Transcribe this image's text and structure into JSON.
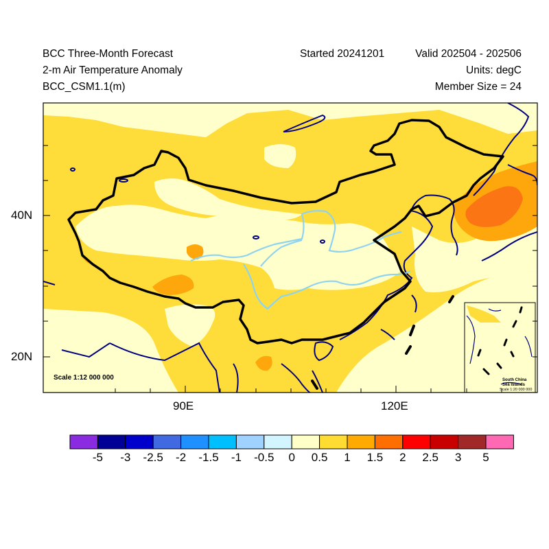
{
  "header": {
    "title": "BCC Three-Month Forecast",
    "variable": "2-m Air Temperature Anomaly",
    "model": "BCC_CSM1.1(m)",
    "started": "Started 20241201",
    "valid": "Valid 202504 - 202506",
    "units": "Units: degC",
    "members": "Member Size = 24"
  },
  "map": {
    "scale_label": "Scale 1:12 000 000",
    "inset": {
      "title_line1": "South China",
      "title_line2": "Sea Islands",
      "scale": "Scale 1:20 000 000"
    },
    "lat_labels": [
      "40N",
      "20N"
    ],
    "lon_labels": [
      "90E",
      "120E"
    ],
    "colors": {
      "ocean_bg": "#ffffcc",
      "anom_0_05": "#ffffcc",
      "anom_05_1": "#fedd3a",
      "anom_1_15": "#fda70c",
      "anom_15_2": "#fb7514",
      "river": "#8ed3f0",
      "coast": "#000080",
      "border": "#000000"
    }
  },
  "colorbar": {
    "colors": [
      "#8a2be2",
      "#000096",
      "#0000cd",
      "#4169e1",
      "#1e90ff",
      "#00bfff",
      "#a0d2ff",
      "#d2f5ff",
      "#ffffc8",
      "#ffdc32",
      "#ffaa00",
      "#ff6e00",
      "#ff0000",
      "#c80000",
      "#a02828",
      "#ff69b4"
    ],
    "labels": [
      "-5",
      "-3",
      "-2.5",
      "-2",
      "-1.5",
      "-1",
      "-0.5",
      "0",
      "0.5",
      "1",
      "1.5",
      "2",
      "2.5",
      "3",
      "5"
    ]
  }
}
